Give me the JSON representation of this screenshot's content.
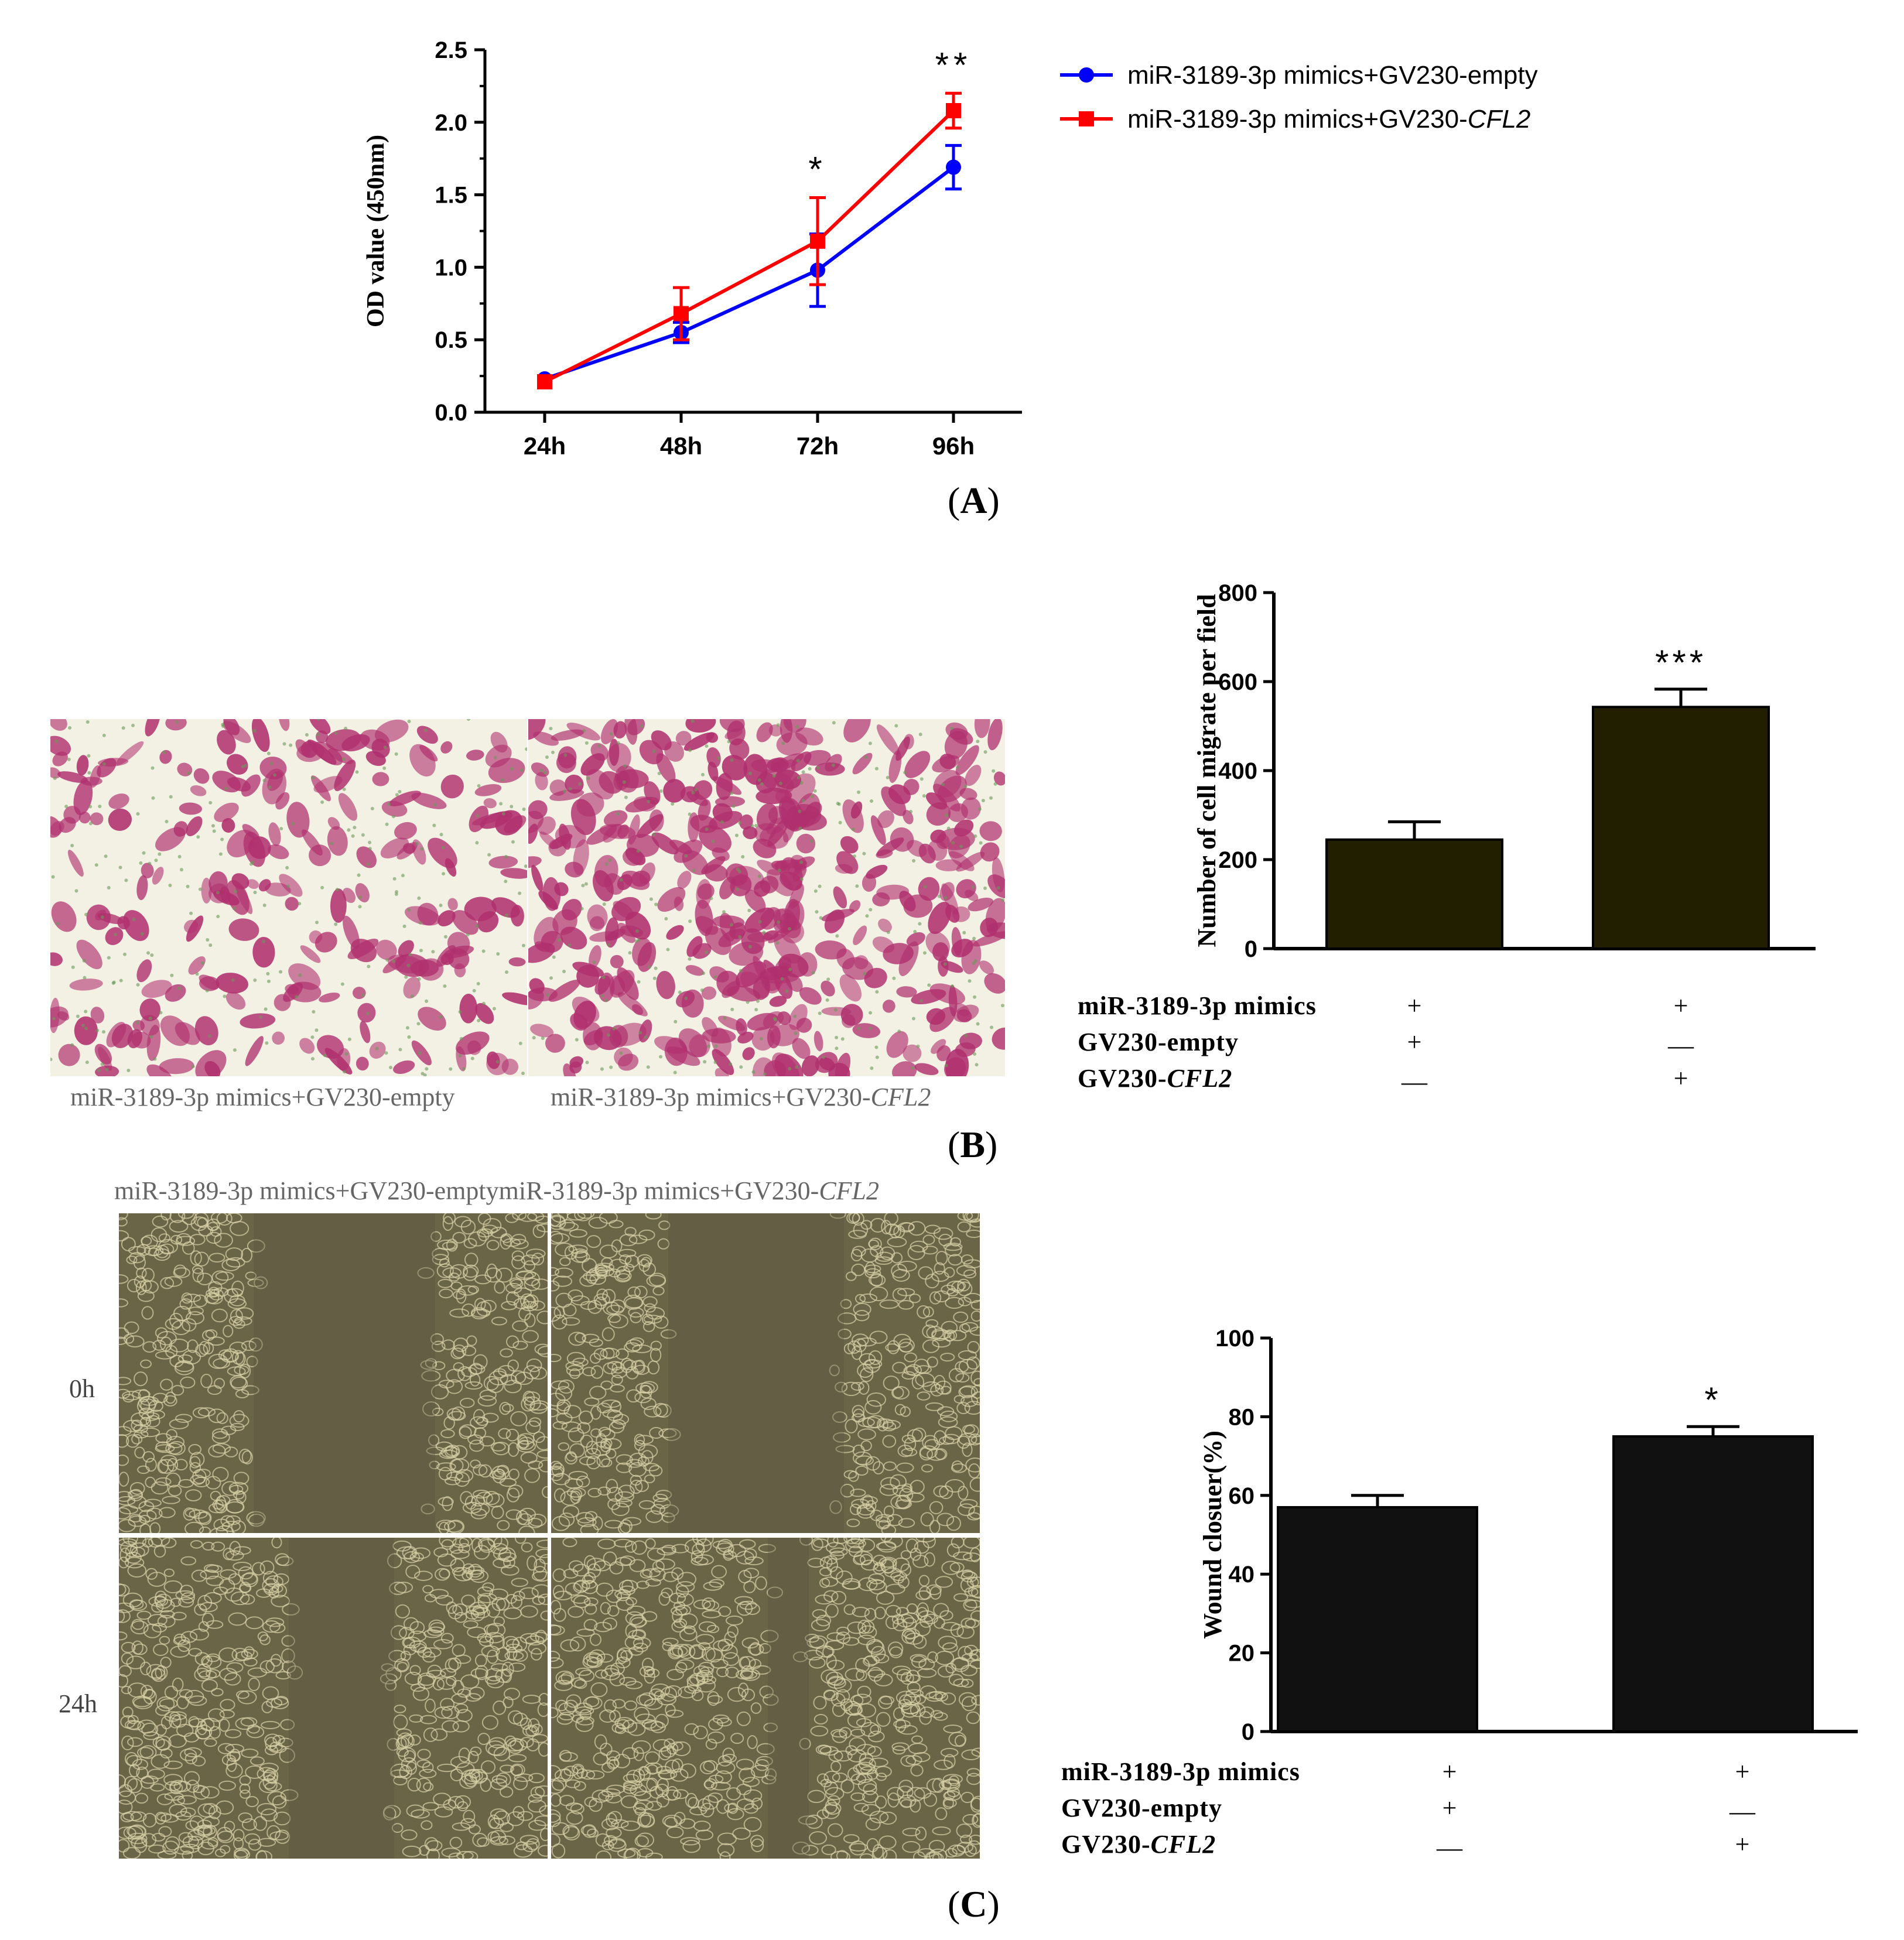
{
  "panel_labels": {
    "a": "A",
    "b": "B",
    "c": "C"
  },
  "microscopy": {
    "transwell_captions": [
      "miR-3189-3p mimics+GV230-empty",
      "miR-3189-3p mimics+GV230-",
      "CFL2"
    ],
    "wound_header": [
      "miR-3189-3p mimics+GV230-empty",
      "miR-3189-3p mimics+GV230-",
      "CFL2"
    ],
    "time_labels": [
      "0h",
      "24h"
    ]
  },
  "chart_data": [
    {
      "type": "line",
      "panel": "A",
      "ylabel": "OD value (450nm)",
      "xlabel": "",
      "categories": [
        "24h",
        "48h",
        "72h",
        "96h"
      ],
      "ylim": [
        0,
        2.5
      ],
      "yticks": [
        "0.0",
        "0.5",
        "1.0",
        "1.5",
        "2.0",
        "2.5"
      ],
      "series": [
        {
          "name": "miR-3189-3p mimics+GV230-empty",
          "color": "#0000ff",
          "marker": "circle",
          "values": [
            0.23,
            0.55,
            0.98,
            1.69
          ],
          "errors": [
            0.02,
            0.07,
            0.25,
            0.15
          ]
        },
        {
          "name": "miR-3189-3p mimics+GV230-CFL2",
          "name_parts": [
            "miR-3189-3p mimics+GV230-",
            "CFL2"
          ],
          "color": "#ff0000",
          "marker": "square",
          "values": [
            0.21,
            0.68,
            1.18,
            2.08
          ],
          "errors": [
            0.02,
            0.18,
            0.3,
            0.12
          ]
        }
      ],
      "significance": [
        "",
        "",
        "*",
        "**"
      ],
      "legend": "top-right, outside"
    },
    {
      "type": "bar",
      "panel": "B",
      "ylabel": "Number of cell migrate per field",
      "ylim": [
        0,
        800
      ],
      "yticks": [
        "0",
        "200",
        "400",
        "600",
        "800"
      ],
      "values": [
        245,
        543
      ],
      "errors": [
        40,
        40
      ],
      "bar_color": "#221f00",
      "significance": [
        "",
        "***"
      ],
      "conditions": {
        "rows": [
          {
            "label": "miR-3189-3p mimics",
            "signs": [
              "+",
              "+"
            ]
          },
          {
            "label": "GV230-empty",
            "signs": [
              "+",
              "—"
            ]
          },
          {
            "label_parts": [
              "GV230-",
              "CFL2"
            ],
            "signs": [
              "—",
              "+"
            ]
          }
        ]
      }
    },
    {
      "type": "bar",
      "panel": "C",
      "ylabel": "Wound closuer(%)",
      "ylim": [
        0,
        100
      ],
      "yticks": [
        "0",
        "20",
        "40",
        "60",
        "80",
        "100"
      ],
      "values": [
        57,
        75
      ],
      "errors": [
        3,
        2.5
      ],
      "bar_color": "#111111",
      "significance": [
        "",
        "*"
      ],
      "conditions": {
        "rows": [
          {
            "label": "miR-3189-3p mimics",
            "signs": [
              "+",
              "+"
            ]
          },
          {
            "label": "GV230-empty",
            "signs": [
              "+",
              "—"
            ]
          },
          {
            "label_parts": [
              "GV230-",
              "CFL2"
            ],
            "signs": [
              "—",
              "+"
            ]
          }
        ]
      }
    }
  ]
}
